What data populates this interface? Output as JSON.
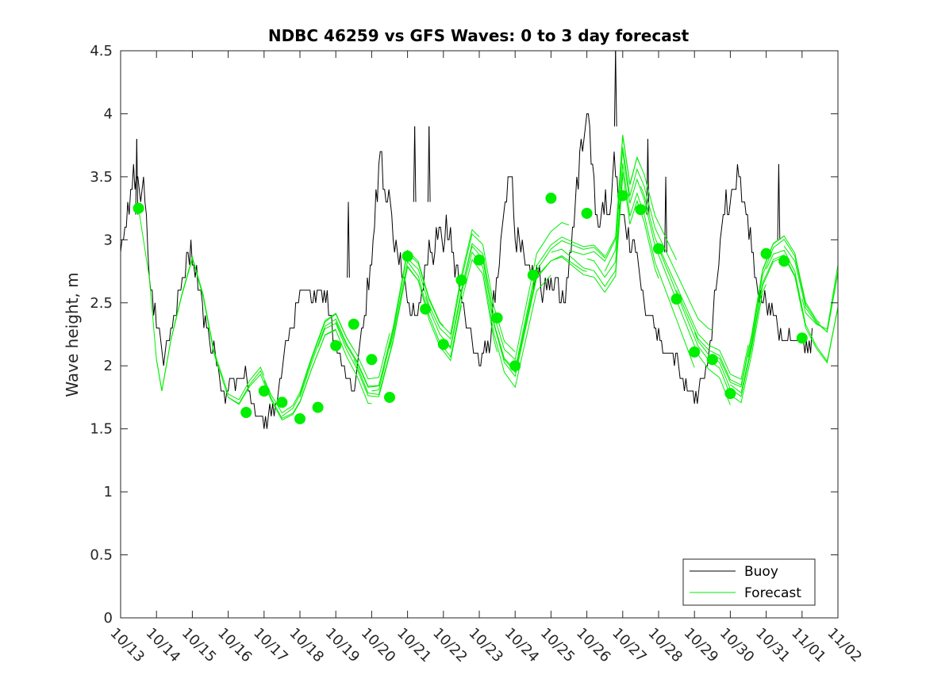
{
  "chart_data": {
    "type": "line",
    "title": "NDBC 46259 vs GFS Waves: 0 to 3 day forecast",
    "xlabel": "",
    "ylabel": "Wave height, m",
    "xlim": [
      0,
      20
    ],
    "ylim": [
      0,
      4.5
    ],
    "yticks": [
      0,
      0.5,
      1,
      1.5,
      2,
      2.5,
      3,
      3.5,
      4,
      4.5
    ],
    "ytick_labels": [
      "0",
      "0.5",
      "1",
      "1.5",
      "2",
      "2.5",
      "3",
      "3.5",
      "4",
      "4.5"
    ],
    "xticks": [
      0,
      1,
      2,
      3,
      4,
      5,
      6,
      7,
      8,
      9,
      10,
      11,
      12,
      13,
      14,
      15,
      16,
      17,
      18,
      19,
      20
    ],
    "xtick_labels": [
      "10/13",
      "10/14",
      "10/15",
      "10/16",
      "10/17",
      "10/18",
      "10/19",
      "10/20",
      "10/21",
      "10/22",
      "10/23",
      "10/24",
      "10/25",
      "10/26",
      "10/27",
      "10/28",
      "10/29",
      "10/30",
      "10/31",
      "11/01",
      "11/02"
    ],
    "legend": {
      "position": "bottom-right",
      "entries": [
        "Buoy",
        "Forecast"
      ]
    },
    "colors": {
      "buoy": "#000000",
      "forecast": "#00ee00",
      "axis": "#262626"
    },
    "buoy_anchors": {
      "x": [
        0,
        0.3,
        0.5,
        0.7,
        0.8,
        1.0,
        1.2,
        1.5,
        1.9,
        2.1,
        2.3,
        2.6,
        2.9,
        3.2,
        3.4,
        3.7,
        4.0,
        4.3,
        4.6,
        4.9,
        5.1,
        5.4,
        5.7,
        5.9,
        6.2,
        6.5,
        6.8,
        7.0,
        7.2,
        7.5,
        7.7,
        7.9,
        8.1,
        8.3,
        8.5,
        8.8,
        9.1,
        9.4,
        9.7,
        10.0,
        10.3,
        10.6,
        10.9,
        11.0,
        11.3,
        11.6,
        11.8,
        12.0,
        12.2,
        12.4,
        12.7,
        13.0,
        13.3,
        13.6,
        13.8,
        14.0,
        14.2,
        14.4,
        14.6,
        14.9,
        15.2,
        15.5,
        15.8,
        16.1,
        16.4,
        16.7,
        16.9,
        17.2,
        17.5,
        17.8,
        18.1,
        18.3,
        18.5,
        18.7,
        18.9,
        19.1,
        19.3
      ],
      "y": [
        2.9,
        3.4,
        3.5,
        3.4,
        2.7,
        2.4,
        2.0,
        2.4,
        2.9,
        2.8,
        2.4,
        2.1,
        1.75,
        1.9,
        2.0,
        1.7,
        1.55,
        1.7,
        2.1,
        2.45,
        2.7,
        2.5,
        2.6,
        2.3,
        2.0,
        1.8,
        2.4,
        2.9,
        3.6,
        3.3,
        2.9,
        2.65,
        2.4,
        2.4,
        2.8,
        3.0,
        3.1,
        2.7,
        2.3,
        2.0,
        2.2,
        3.0,
        3.6,
        3.1,
        2.8,
        2.7,
        2.6,
        2.7,
        2.6,
        2.5,
        3.4,
        4.1,
        3.1,
        3.3,
        3.6,
        3.2,
        3.0,
        2.8,
        2.5,
        2.3,
        2.1,
        2.0,
        1.8,
        1.75,
        2.1,
        2.9,
        3.3,
        3.5,
        3.1,
        2.6,
        2.4,
        2.3,
        2.2,
        2.25,
        2.2,
        2.2,
        2.2
      ]
    },
    "buoy_segment_end": 19.3,
    "forecast_base": {
      "x": [
        0.5,
        0.8,
        1.0,
        1.15,
        1.4,
        1.7,
        2.0,
        2.3,
        2.6,
        3.0,
        3.3,
        3.6,
        3.9,
        4.2,
        4.5,
        4.8,
        5.0,
        5.3,
        5.7,
        6.0,
        6.3,
        6.6,
        6.9,
        7.2,
        7.6,
        8.0,
        8.3,
        8.6,
        8.9,
        9.2,
        9.5,
        9.8,
        10.1,
        10.4,
        10.7,
        11.0,
        11.3,
        11.6,
        12.0,
        12.3,
        12.6,
        12.9,
        13.2,
        13.5,
        13.8,
        14.0,
        14.2,
        14.4,
        14.6,
        14.9,
        15.2,
        15.5,
        15.8,
        16.1,
        16.4,
        16.7,
        17.0,
        17.3,
        17.6,
        17.9,
        18.2,
        18.5,
        18.8,
        19.1,
        19.4,
        19.7,
        20.0
      ],
      "y": [
        3.25,
        2.7,
        2.05,
        1.8,
        2.2,
        2.55,
        2.85,
        2.55,
        2.1,
        1.75,
        1.7,
        1.85,
        1.95,
        1.75,
        1.6,
        1.65,
        1.75,
        2.0,
        2.3,
        2.35,
        2.15,
        2.0,
        1.8,
        1.8,
        2.25,
        2.85,
        2.75,
        2.45,
        2.25,
        2.15,
        2.6,
        2.95,
        2.85,
        2.35,
        2.05,
        1.95,
        2.35,
        2.75,
        2.9,
        2.95,
        2.9,
        2.85,
        2.85,
        2.75,
        2.9,
        3.7,
        3.3,
        3.5,
        3.35,
        3.0,
        2.8,
        2.6,
        2.4,
        2.2,
        2.1,
        2.05,
        1.85,
        1.8,
        2.2,
        2.7,
        2.9,
        2.95,
        2.8,
        2.4,
        2.25,
        2.15,
        2.6
      ]
    },
    "forecast_cycles": [
      {
        "start": 0.5,
        "offset": 0.0
      },
      {
        "start": 1.0,
        "offset": 0.02
      },
      {
        "start": 3.0,
        "offset": -0.03
      },
      {
        "start": 3.5,
        "offset": 0.04
      },
      {
        "start": 4.0,
        "offset": -0.05
      },
      {
        "start": 4.5,
        "offset": 0.06
      },
      {
        "start": 5.0,
        "offset": 0.03
      },
      {
        "start": 5.5,
        "offset": -0.04
      },
      {
        "start": 6.0,
        "offset": 0.05
      },
      {
        "start": 6.5,
        "offset": -0.06
      },
      {
        "start": 7.0,
        "offset": 0.07
      },
      {
        "start": 7.5,
        "offset": -0.07
      },
      {
        "start": 8.0,
        "offset": 0.08
      },
      {
        "start": 8.5,
        "offset": 0.0
      },
      {
        "start": 9.0,
        "offset": -0.09
      },
      {
        "start": 9.5,
        "offset": 0.1
      },
      {
        "start": 10.0,
        "offset": -0.05
      },
      {
        "start": 10.5,
        "offset": 0.06
      },
      {
        "start": 11.0,
        "offset": -0.1
      },
      {
        "start": 11.5,
        "offset": 0.08
      },
      {
        "start": 12.0,
        "offset": -0.12
      },
      {
        "start": 12.5,
        "offset": 0.12
      },
      {
        "start": 13.0,
        "offset": -0.14
      },
      {
        "start": 13.5,
        "offset": 0.1
      },
      {
        "start": 14.0,
        "offset": -0.08
      },
      {
        "start": 14.5,
        "offset": 0.05
      },
      {
        "start": 15.0,
        "offset": -0.06
      },
      {
        "start": 15.5,
        "offset": 0.04
      },
      {
        "start": 16.0,
        "offset": -0.05
      },
      {
        "start": 16.5,
        "offset": 0.06
      },
      {
        "start": 17.0,
        "offset": -0.07
      },
      {
        "start": 17.5,
        "offset": 0.08
      },
      {
        "start": 18.0,
        "offset": -0.1
      },
      {
        "start": 18.5,
        "offset": 0.15
      },
      {
        "start": 19.0,
        "offset": 0.3
      }
    ],
    "forecast_markers": {
      "x": [
        0.5,
        3.5,
        4.0,
        4.5,
        5.0,
        5.5,
        6.0,
        6.5,
        7.0,
        7.5,
        8.0,
        8.5,
        9.0,
        9.5,
        10.0,
        10.5,
        11.0,
        11.5,
        12.0,
        13.0,
        14.0,
        14.5,
        15.0,
        15.5,
        16.0,
        16.5,
        17.0,
        18.0,
        18.5,
        19.0
      ],
      "y": [
        3.25,
        1.63,
        1.8,
        1.71,
        1.58,
        1.67,
        2.16,
        2.33,
        2.05,
        1.75,
        2.87,
        2.45,
        2.17,
        2.68,
        2.84,
        2.38,
        2.0,
        2.72,
        3.33,
        3.21,
        3.35,
        3.24,
        2.93,
        2.53,
        2.11,
        2.05,
        1.78,
        2.89,
        2.83,
        2.22
      ]
    }
  }
}
